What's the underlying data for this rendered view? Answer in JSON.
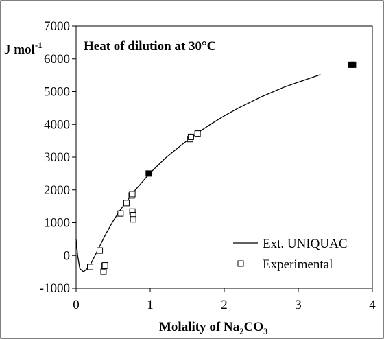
{
  "chart_data": {
    "type": "scatter",
    "title": "Heat of dilution at 30°C",
    "ylabel": {
      "main": "J mol",
      "sup": "-1"
    },
    "xlabel": {
      "pre": "Molality of Na",
      "sub1": "2",
      "mid": "CO",
      "sub2": "3"
    },
    "xlim": [
      0,
      4
    ],
    "ylim": [
      -1000,
      7000
    ],
    "x_ticks": [
      "0",
      "1",
      "2",
      "3",
      "4"
    ],
    "y_ticks": [
      "-1000",
      "0",
      "1000",
      "2000",
      "3000",
      "4000",
      "5000",
      "6000",
      "7000"
    ],
    "legend_position": "bottom-right",
    "series": [
      {
        "name": "Ext. UNIQUAC",
        "kind": "line",
        "color": "#000000",
        "x": [
          0.0,
          0.02,
          0.05,
          0.1,
          0.15,
          0.2,
          0.3,
          0.4,
          0.5,
          0.6,
          0.7,
          0.8,
          1.0,
          1.2,
          1.4,
          1.6,
          1.8,
          2.0,
          2.2,
          2.5,
          2.8,
          3.0,
          3.3
        ],
        "y": [
          500,
          0,
          -400,
          -500,
          -400,
          -250,
          200,
          650,
          1050,
          1400,
          1700,
          2000,
          2520,
          2960,
          3330,
          3680,
          3980,
          4260,
          4510,
          4840,
          5130,
          5290,
          5520
        ]
      },
      {
        "name": "Experimental",
        "kind": "points",
        "marker": "open-square",
        "x": [
          0.19,
          0.32,
          0.37,
          0.38,
          0.39,
          0.6,
          0.68,
          0.75,
          0.76,
          0.76,
          0.77,
          0.77,
          1.54,
          1.55,
          1.64
        ],
        "y": [
          -350,
          150,
          -500,
          -320,
          -300,
          1280,
          1600,
          1830,
          1870,
          1340,
          1230,
          1100,
          3550,
          3620,
          3720
        ]
      },
      {
        "name": "",
        "kind": "points",
        "marker": "filled-square",
        "x": [
          0.98,
          3.71,
          3.74
        ],
        "y": [
          2500,
          5820,
          5820
        ]
      }
    ]
  }
}
